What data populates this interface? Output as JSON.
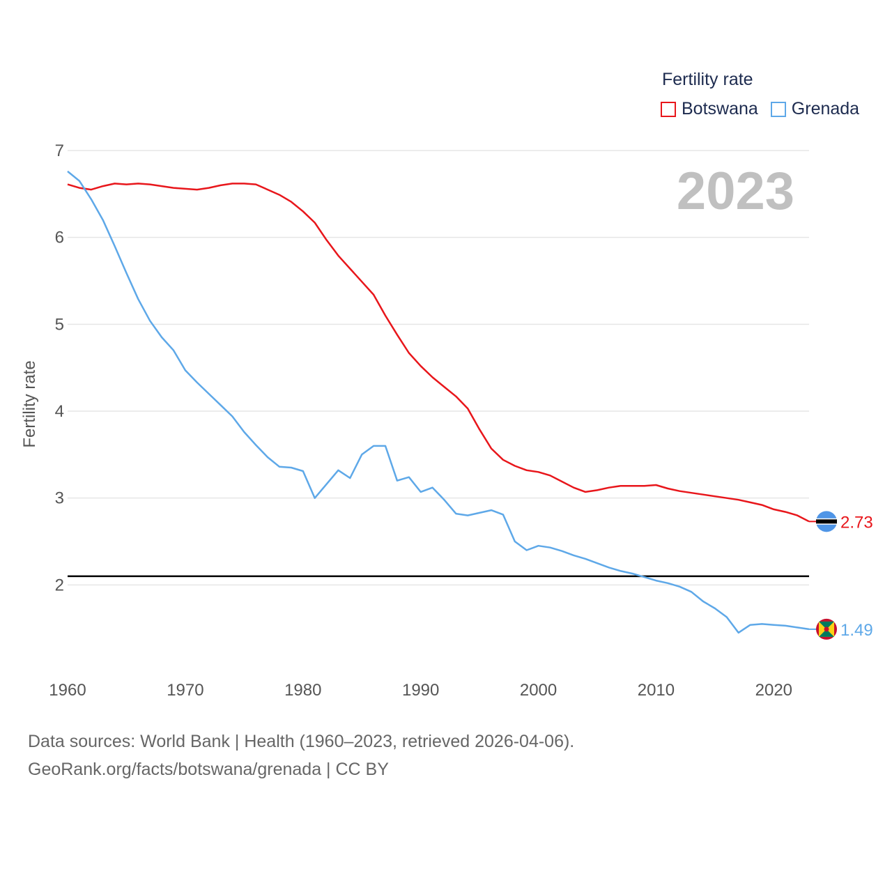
{
  "legend": {
    "title": "Fertility rate",
    "items": [
      {
        "label": "Botswana",
        "color": "#e8161b"
      },
      {
        "label": "Grenada",
        "color": "#5ea8e8"
      }
    ]
  },
  "year_label": "2023",
  "footer": {
    "line1": "Data sources: World Bank | Health (1960–2023, retrieved 2026-04-06).",
    "line2": "GeoRank.org/facts/botswana/grenada | CC BY"
  },
  "chart_data": {
    "type": "line",
    "title": "",
    "xlabel": "",
    "ylabel": "Fertility rate",
    "xlim": [
      1960,
      2023
    ],
    "ylim": [
      1.0,
      7.0
    ],
    "x_ticks": [
      "1960",
      "1970",
      "1980",
      "1990",
      "2000",
      "2010",
      "2020"
    ],
    "y_ticks": [
      "2",
      "3",
      "4",
      "5",
      "6",
      "7"
    ],
    "reference_line": {
      "y": 2.1,
      "color": "#000000"
    },
    "x": [
      1960,
      1961,
      1962,
      1963,
      1964,
      1965,
      1966,
      1967,
      1968,
      1969,
      1970,
      1971,
      1972,
      1973,
      1974,
      1975,
      1976,
      1977,
      1978,
      1979,
      1980,
      1981,
      1982,
      1983,
      1984,
      1985,
      1986,
      1987,
      1988,
      1989,
      1990,
      1991,
      1992,
      1993,
      1994,
      1995,
      1996,
      1997,
      1998,
      1999,
      2000,
      2001,
      2002,
      2003,
      2004,
      2005,
      2006,
      2007,
      2008,
      2009,
      2010,
      2011,
      2012,
      2013,
      2014,
      2015,
      2016,
      2017,
      2018,
      2019,
      2020,
      2021,
      2022,
      2023
    ],
    "series": [
      {
        "name": "Botswana",
        "color": "#e8161b",
        "end_label": "2.73",
        "values": [
          6.61,
          6.57,
          6.55,
          6.59,
          6.62,
          6.61,
          6.62,
          6.61,
          6.59,
          6.57,
          6.56,
          6.55,
          6.57,
          6.6,
          6.62,
          6.62,
          6.61,
          6.55,
          6.49,
          6.41,
          6.3,
          6.17,
          5.97,
          5.79,
          5.64,
          5.49,
          5.34,
          5.1,
          4.88,
          4.67,
          4.52,
          4.39,
          4.28,
          4.17,
          4.03,
          3.79,
          3.57,
          3.44,
          3.37,
          3.32,
          3.3,
          3.26,
          3.19,
          3.12,
          3.07,
          3.09,
          3.12,
          3.14,
          3.14,
          3.14,
          3.15,
          3.11,
          3.08,
          3.06,
          3.04,
          3.02,
          3.0,
          2.98,
          2.95,
          2.92,
          2.87,
          2.84,
          2.8,
          2.73
        ]
      },
      {
        "name": "Grenada",
        "color": "#5ea8e8",
        "end_label": "1.49",
        "values": [
          6.76,
          6.65,
          6.44,
          6.2,
          5.9,
          5.59,
          5.29,
          5.04,
          4.85,
          4.7,
          4.47,
          4.33,
          4.2,
          4.07,
          3.94,
          3.76,
          3.61,
          3.47,
          3.36,
          3.35,
          3.31,
          3.0,
          3.16,
          3.32,
          3.23,
          3.5,
          3.6,
          3.6,
          3.2,
          3.24,
          3.07,
          3.12,
          2.98,
          2.82,
          2.8,
          2.83,
          2.86,
          2.81,
          2.5,
          2.4,
          2.45,
          2.43,
          2.39,
          2.34,
          2.3,
          2.25,
          2.2,
          2.16,
          2.13,
          2.09,
          2.05,
          2.02,
          1.98,
          1.92,
          1.81,
          1.73,
          1.63,
          1.45,
          1.54,
          1.55,
          1.54,
          1.53,
          1.51,
          1.49
        ]
      }
    ]
  }
}
